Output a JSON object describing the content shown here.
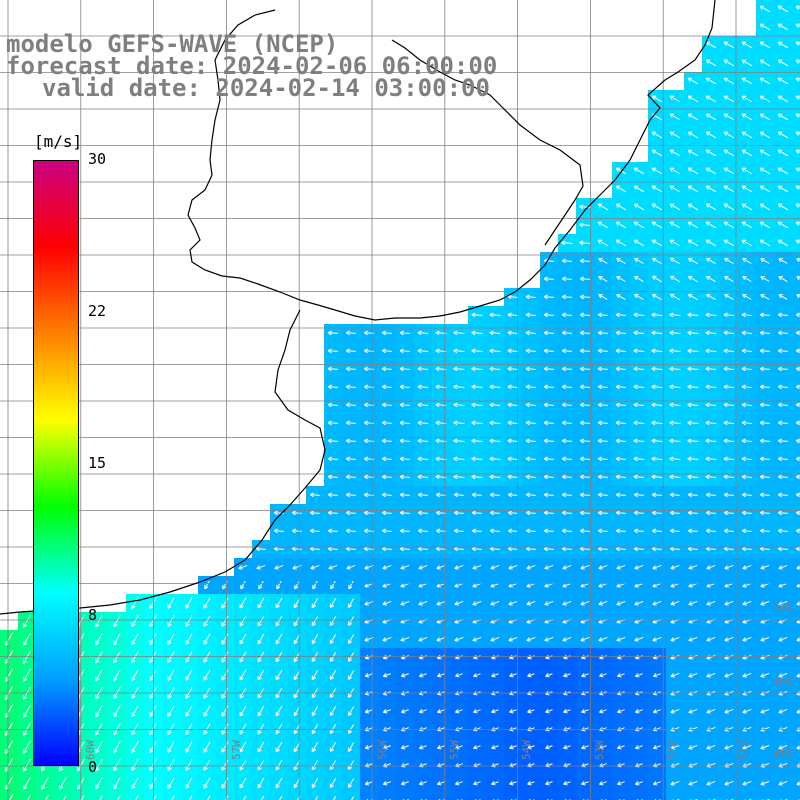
{
  "title": {
    "line1": "modelo GEFS-WAVE (NCEP)",
    "line2": "forecast date: 2024-02-06 06:00:00",
    "line3": "valid date: 2024-02-14 03:00:00"
  },
  "colorbar": {
    "unit": "[m/s]",
    "ticks": [
      "30",
      "22",
      "15",
      "8",
      "0"
    ],
    "tick_values": [
      30,
      22,
      15,
      8,
      0
    ],
    "min": 0,
    "max": 30,
    "colors": [
      "#0000ff",
      "#00a0ff",
      "#00ffff",
      "#00ff00",
      "#ffff00",
      "#ff8000",
      "#ff0000",
      "#cc0080"
    ]
  },
  "map": {
    "land_color": "#ffffff",
    "grid_color": "#808080",
    "coast_color": "#000000",
    "lat_labels": [
      "39S",
      "40S",
      "41S"
    ],
    "lon_labels": [
      "60W",
      "57W",
      "56W",
      "55W",
      "54W",
      "53W",
      "52W",
      "51W"
    ]
  }
}
